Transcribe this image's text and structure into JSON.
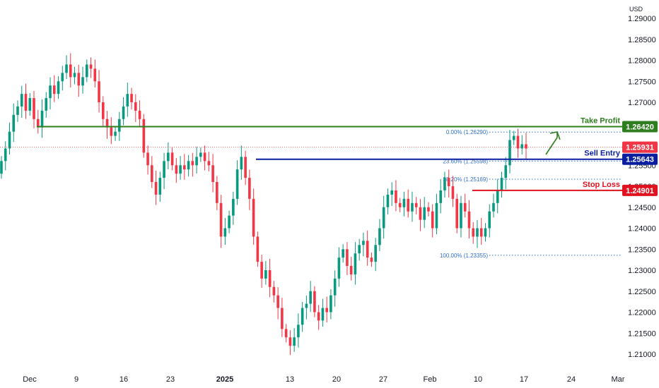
{
  "chart_data": {
    "type": "candlestick",
    "currency": "USD",
    "ylim": [
      1.2065,
      1.2925
    ],
    "y_ticks": [
      "1.29000",
      "1.28500",
      "1.28000",
      "1.27500",
      "1.27000",
      "1.26500",
      "1.26000",
      "1.25500",
      "1.25000",
      "1.24500",
      "1.24000",
      "1.23500",
      "1.23000",
      "1.22500",
      "1.22000",
      "1.21500",
      "1.21000"
    ],
    "x_ticks": [
      "Dec",
      "9",
      "16",
      "23",
      "2025",
      "13",
      "20",
      "27",
      "Feb",
      "10",
      "17",
      "24",
      "Mar"
    ],
    "levels": [
      {
        "name": "Take Profit",
        "value": "1.26420",
        "color": "#2e7d1e"
      },
      {
        "name": "Sell Entry",
        "value": "1.25643",
        "color": "#0a1fa0"
      },
      {
        "name": "Stop Loss",
        "value": "1.24901",
        "color": "#e0121f"
      }
    ],
    "current_price": {
      "value": "1.25931",
      "color": "#f23645"
    },
    "fibonacci": [
      {
        "label": "0.00% (1.26290)",
        "value": 1.2629
      },
      {
        "label": "23.60% (1.25598)",
        "value": 1.25598
      },
      {
        "label": "38.20% (1.25169)",
        "value": 1.25169
      },
      {
        "label": "100.00% (1.23355)",
        "value": 1.23355
      }
    ],
    "series": [
      {
        "values": [
          1.256,
          1.259,
          1.263,
          1.267,
          1.269,
          1.272,
          1.268,
          1.271,
          1.266,
          1.264,
          1.268,
          1.271,
          1.274,
          1.272,
          1.275,
          1.277,
          1.279,
          1.276,
          1.277,
          1.274,
          1.276,
          1.279,
          1.278,
          1.275,
          1.27,
          1.266,
          1.264,
          1.262,
          1.263,
          1.266,
          1.269,
          1.272,
          1.27,
          1.268,
          1.266,
          1.258,
          1.255,
          1.251,
          1.248,
          1.252,
          1.256,
          1.258,
          1.255,
          1.253,
          1.255,
          1.254,
          1.256,
          1.255,
          1.257,
          1.258,
          1.256,
          1.255,
          1.251,
          1.246,
          1.238,
          1.24,
          1.243,
          1.247,
          1.254,
          1.257,
          1.252,
          1.247,
          1.238,
          1.232,
          1.228,
          1.23,
          1.226,
          1.224,
          1.221,
          1.216,
          1.214,
          1.212,
          1.214,
          1.217,
          1.221,
          1.222,
          1.225,
          1.22,
          1.218,
          1.221,
          1.22,
          1.224,
          1.228,
          1.233,
          1.235,
          1.231,
          1.229,
          1.234,
          1.236,
          1.237,
          1.233,
          1.232,
          1.236,
          1.24,
          1.245,
          1.248,
          1.249,
          1.246,
          1.245,
          1.247,
          1.244,
          1.246,
          1.245,
          1.242,
          1.245,
          1.244,
          1.24,
          1.246,
          1.249,
          1.252,
          1.25,
          1.247,
          1.24,
          1.246,
          1.244,
          1.24,
          1.238,
          1.24,
          1.238,
          1.24,
          1.244,
          1.246,
          1.249,
          1.252,
          1.255,
          1.261,
          1.262,
          1.259,
          1.26,
          1.259
        ]
      }
    ]
  }
}
